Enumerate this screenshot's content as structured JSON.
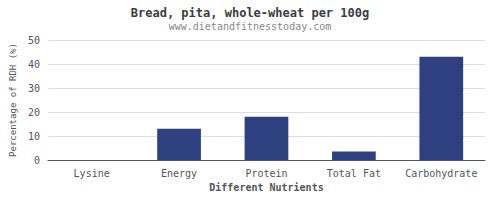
{
  "chart_data": {
    "type": "bar",
    "title": "Bread, pita, whole-wheat per 100g",
    "subtitle": "www.dietandfitnesstoday.com",
    "xlabel": "Different Nutrients",
    "ylabel": "Percentage of RDH (%)",
    "categories": [
      "Lysine",
      "Energy",
      "Protein",
      "Total Fat",
      "Carbohydrate"
    ],
    "values": [
      0,
      13,
      18,
      3.5,
      43
    ],
    "color": "#2e4080",
    "ylim": [
      0,
      50
    ],
    "yticks": [
      0,
      10,
      20,
      30,
      40,
      50
    ],
    "grid": true
  }
}
